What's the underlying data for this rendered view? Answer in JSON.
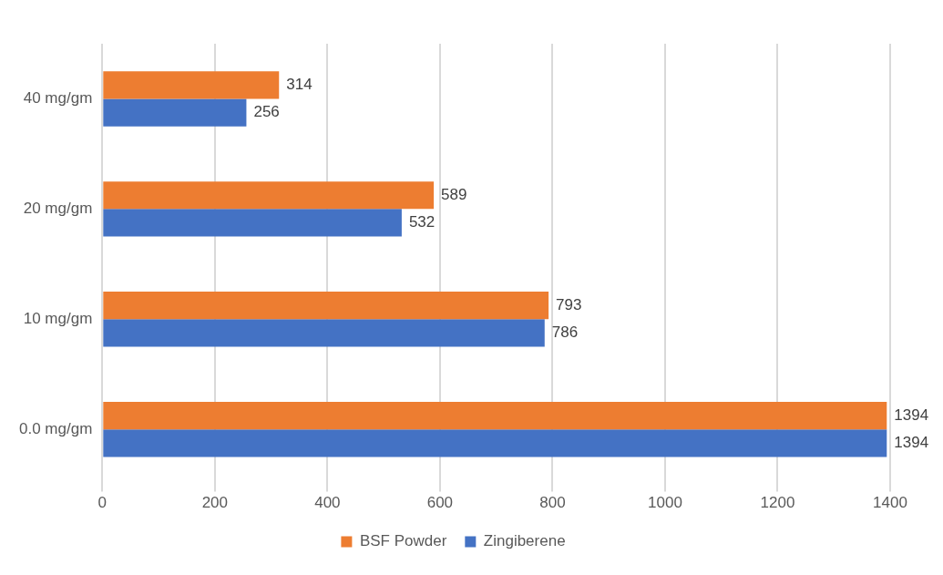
{
  "chart_data": {
    "type": "bar",
    "orientation": "horizontal",
    "categories": [
      "40 mg/gm",
      "20 mg/gm",
      "10 mg/gm",
      "0.0 mg/gm"
    ],
    "series": [
      {
        "name": "BSF Powder",
        "color": "#ed7d31",
        "values": [
          314,
          589,
          793,
          1394
        ]
      },
      {
        "name": "Zingiberene",
        "color": "#4472c4",
        "values": [
          256,
          532,
          786,
          1394
        ]
      }
    ],
    "xlim": [
      0,
      1400
    ],
    "xticks": [
      0,
      200,
      400,
      600,
      800,
      1000,
      1200,
      1400
    ],
    "grid": "x",
    "legend": "bottom",
    "data_labels": true
  }
}
